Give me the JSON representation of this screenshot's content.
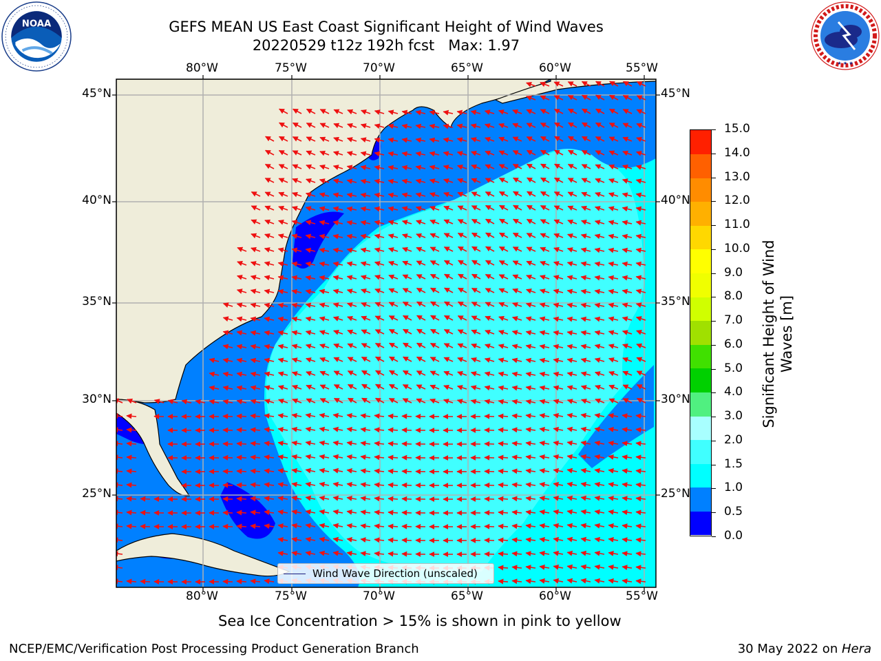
{
  "header": {
    "title_line1": "GEFS MEAN US East Coast Significant Height of Wind Waves",
    "title_line2": "20220529 t12z 192h fcst   Max: 1.97"
  },
  "logos": {
    "left": "noaa-logo",
    "right": "nws-logo"
  },
  "map": {
    "lon_labels": [
      "80°W",
      "75°W",
      "70°W",
      "65°W",
      "60°W",
      "55°W"
    ],
    "lat_labels": [
      "45°N",
      "40°N",
      "35°N",
      "30°N",
      "25°N"
    ],
    "legend_label": "Wind Wave Direction (unscaled)",
    "colors": {
      "land": "#efedda",
      "arrow": "#ee1111",
      "grid": "#b0b0b0",
      "coast": "#000000"
    },
    "arrow_direction": "mostly westward to west-southwestward"
  },
  "colorbar": {
    "title": "Significant Height of Wind Waves [m]",
    "tick_labels": [
      "0.0",
      "0.5",
      "1.0",
      "1.5",
      "2.0",
      "3.0",
      "4.0",
      "5.0",
      "6.0",
      "7.0",
      "8.0",
      "9.0",
      "10.0",
      "11.0",
      "12.0",
      "13.0",
      "14.0",
      "15.0"
    ],
    "colors": [
      "#0000ff",
      "#0080ff",
      "#00ffff",
      "#40ffff",
      "#a8ffff",
      "#50f080",
      "#00d000",
      "#40e000",
      "#a0e000",
      "#d0ff00",
      "#f0ff00",
      "#ffff00",
      "#ffd800",
      "#ffb000",
      "#ff8c00",
      "#ff6000",
      "#ff2000"
    ]
  },
  "subnote": "Sea Ice Concentration > 15% is shown in pink to yellow",
  "footer": {
    "left": "NCEP/EMC/Verification Post Processing Product Generation Branch",
    "right_date": "30 May 2022 on ",
    "right_host": "Hera"
  }
}
